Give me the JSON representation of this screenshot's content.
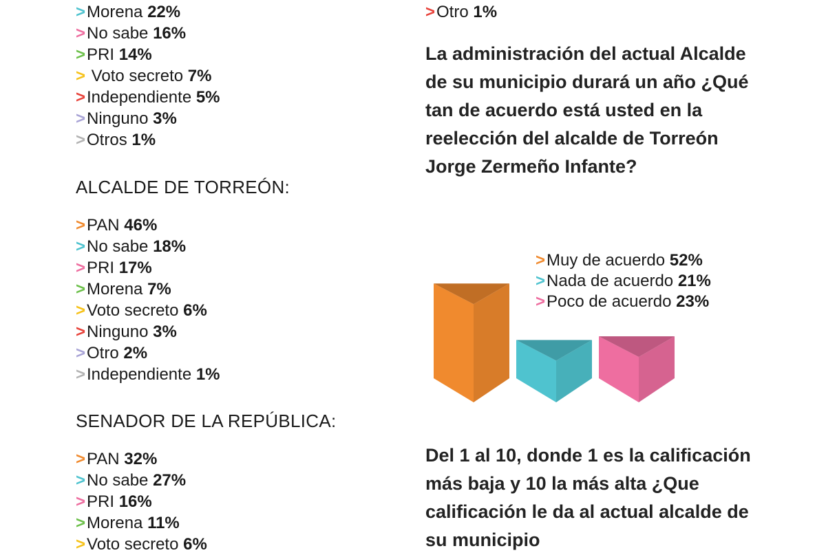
{
  "colors": {
    "orange": "#f08a2e",
    "cyan": "#4fc3cf",
    "pink": "#ee6ea0",
    "green": "#6cc04a",
    "yellow": "#f6c21a",
    "red": "#e8423a",
    "lavender": "#a9a4d6",
    "gray": "#b3b3b3"
  },
  "top_list": [
    {
      "label": "Morena",
      "value": "22%",
      "color": "cyan"
    },
    {
      "label": "No sabe",
      "value": "16%",
      "color": "pink"
    },
    {
      "label": "PRI",
      "value": "14%",
      "color": "green"
    },
    {
      "label": " Voto secreto",
      "value": "7%",
      "color": "yellow"
    },
    {
      "label": "Independiente",
      "value": "5%",
      "color": "red"
    },
    {
      "label": "Ninguno",
      "value": "3%",
      "color": "lavender"
    },
    {
      "label": "Otros",
      "value": "1%",
      "color": "gray"
    }
  ],
  "alcalde": {
    "heading": "ALCALDE DE TORREÓN:",
    "items": [
      {
        "label": "PAN",
        "value": "46%",
        "color": "orange"
      },
      {
        "label": "No sabe",
        "value": "18%",
        "color": "cyan"
      },
      {
        "label": "PRI",
        "value": "17%",
        "color": "pink"
      },
      {
        "label": "Morena",
        "value": "7%",
        "color": "green"
      },
      {
        "label": "Voto secreto",
        "value": "6%",
        "color": "yellow"
      },
      {
        "label": "Ninguno",
        "value": "3%",
        "color": "red"
      },
      {
        "label": "Otro",
        "value": "2%",
        "color": "lavender"
      },
      {
        "label": "Independiente",
        "value": "1%",
        "color": "gray"
      }
    ]
  },
  "senador": {
    "heading": "SENADOR DE LA REPÚBLICA:",
    "items": [
      {
        "label": "PAN",
        "value": "32%",
        "color": "orange"
      },
      {
        "label": "No sabe",
        "value": "27%",
        "color": "cyan"
      },
      {
        "label": "PRI",
        "value": "16%",
        "color": "pink"
      },
      {
        "label": "Morena",
        "value": "11%",
        "color": "green"
      },
      {
        "label": "Voto secreto",
        "value": "6%",
        "color": "yellow"
      }
    ]
  },
  "right_top_item": {
    "label": "Otro",
    "value": "1%",
    "color": "red"
  },
  "question1": "La administración del actual Alcalde de su municipio durará un año ¿Qué tan de acuerdo está usted en la reelección del alcalde de Torreón Jorge Zermeño Infante?",
  "question2": "Del 1 al 10, donde 1 es la calificación más baja y 10 la más alta ¿Que calificación le da al actual alcalde de su municipio",
  "chart_data": {
    "type": "bar",
    "categories": [
      "Muy de acuerdo",
      "Nada de acuerdo",
      "Poco de acuerdo"
    ],
    "values": [
      52,
      21,
      23
    ],
    "value_labels": [
      "52%",
      "21%",
      "23%"
    ],
    "colors": [
      "#f08a2e",
      "#4fc3cf",
      "#ee6ea0"
    ],
    "legend_placement": "top-right",
    "grid": false
  }
}
